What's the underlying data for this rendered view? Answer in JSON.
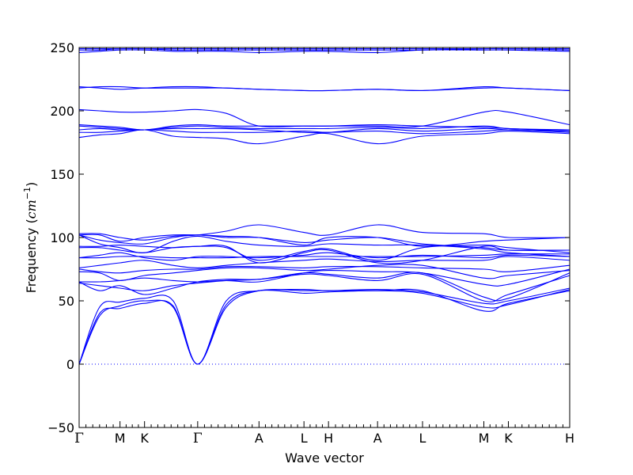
{
  "chart_data": {
    "type": "line",
    "title": "",
    "xlabel": "Wave vector",
    "ylabel_text": "Frequency (",
    "ylabel_unit_base": "cm",
    "ylabel_unit_exp": "−1",
    "ylabel_close": ")",
    "ylim": [
      -50,
      250
    ],
    "yticks": [
      -50,
      0,
      50,
      100,
      150,
      200,
      250
    ],
    "ytick_labels": [
      "−50",
      "0",
      "50",
      "100",
      "150",
      "200",
      "250"
    ],
    "xlim": [
      0,
      12
    ],
    "high_symmetry_points": [
      {
        "label": "Γ",
        "x": 0,
        "serif": true
      },
      {
        "label": "M",
        "x": 1,
        "serif": false
      },
      {
        "label": "K",
        "x": 1.6,
        "serif": false
      },
      {
        "label": "Γ",
        "x": 2.9,
        "serif": true
      },
      {
        "label": "A",
        "x": 4.4,
        "serif": false
      },
      {
        "label": "L",
        "x": 5.5,
        "serif": false
      },
      {
        "label": "H",
        "x": 6.1,
        "serif": false
      },
      {
        "label": "A",
        "x": 7.3,
        "serif": false
      },
      {
        "label": "L",
        "x": 8.4,
        "serif": false
      },
      {
        "label": "M",
        "x": 9.9,
        "serif": false
      },
      {
        "label": "K",
        "x": 10.5,
        "serif": false
      },
      {
        "label": "H",
        "x": 12,
        "serif": false
      }
    ],
    "grid": false,
    "zero_line": "dotted",
    "series_color": "#0000ff",
    "series": [
      {
        "x": [
          0,
          0.5,
          1,
          1.6,
          2.3,
          2.9,
          3.6,
          4.4,
          5.5,
          6.1,
          7.3,
          8.4,
          9.9,
          10.5,
          12
        ],
        "y": [
          0,
          38,
          46,
          50,
          45,
          0,
          45,
          58,
          58,
          58,
          58,
          58,
          42,
          48,
          58
        ]
      },
      {
        "x": [
          0,
          0.5,
          1,
          1.6,
          2.3,
          2.9,
          3.6,
          4.4,
          5.5,
          6.1,
          7.3,
          8.4,
          9.9,
          10.5,
          12
        ],
        "y": [
          0,
          40,
          44,
          48,
          46,
          0,
          47,
          58,
          56,
          57,
          58,
          56,
          45,
          47,
          59
        ]
      },
      {
        "x": [
          0,
          0.5,
          1,
          1.6,
          2.3,
          2.9,
          3.6,
          4.4,
          5.5,
          6.1,
          7.3,
          8.4,
          9.9,
          10.5,
          12
        ],
        "y": [
          0,
          45,
          49,
          52,
          50,
          0,
          50,
          58,
          59,
          58,
          59,
          57,
          48,
          50,
          60
        ]
      },
      {
        "x": [
          0,
          0.5,
          1,
          1.6,
          2.3,
          2.9,
          3.6,
          4.4,
          5.5,
          6.1,
          7.3,
          8.4,
          9.9,
          10.5,
          12
        ],
        "y": [
          65,
          58,
          62,
          55,
          60,
          65,
          67,
          67,
          71,
          70,
          66,
          71,
          50,
          55,
          70
        ]
      },
      {
        "x": [
          0,
          0.5,
          1,
          1.6,
          2.3,
          2.9,
          3.6,
          4.4,
          5.5,
          6.1,
          7.3,
          8.4,
          9.9,
          10.5,
          12
        ],
        "y": [
          64,
          62,
          60,
          58,
          62,
          64,
          66,
          67,
          72,
          71,
          68,
          72,
          53,
          52,
          72
        ]
      },
      {
        "x": [
          0,
          0.5,
          1,
          1.6,
          2.3,
          2.9,
          3.6,
          4.4,
          5.5,
          6.1,
          7.3,
          8.4,
          9.9,
          10.5,
          12
        ],
        "y": [
          65,
          65,
          66,
          68,
          66,
          65,
          66,
          65,
          72,
          74,
          73,
          72,
          63,
          63,
          75
        ]
      },
      {
        "x": [
          0,
          0.5,
          1,
          1.6,
          2.3,
          2.9,
          3.6,
          4.4,
          5.5,
          6.1,
          7.3,
          8.4,
          9.9,
          10.5,
          12
        ],
        "y": [
          73,
          72,
          66,
          70,
          72,
          74,
          76,
          76,
          74,
          75,
          78,
          78,
          68,
          70,
          74
        ]
      },
      {
        "x": [
          0,
          0.5,
          1,
          1.6,
          2.3,
          2.9,
          3.6,
          4.4,
          5.5,
          6.1,
          7.3,
          8.4,
          9.9,
          10.5,
          12
        ],
        "y": [
          75,
          73,
          72,
          74,
          75,
          75,
          77,
          77,
          76,
          77,
          77,
          76,
          75,
          73,
          78
        ]
      },
      {
        "x": [
          0,
          0.5,
          1,
          1.6,
          2.3,
          2.9,
          3.6,
          4.4,
          5.5,
          6.1,
          7.3,
          8.4,
          9.9,
          10.5,
          12
        ],
        "y": [
          76,
          78,
          80,
          82,
          78,
          76,
          78,
          80,
          82,
          83,
          81,
          82,
          82,
          85,
          82
        ]
      },
      {
        "x": [
          0,
          0.5,
          1,
          1.6,
          2.3,
          2.9,
          3.6,
          4.4,
          5.5,
          6.1,
          7.3,
          8.4,
          9.9,
          10.5,
          12
        ],
        "y": [
          84,
          86,
          88,
          84,
          82,
          85,
          85,
          84,
          86,
          88,
          84,
          86,
          84,
          86,
          85
        ]
      },
      {
        "x": [
          0,
          0.5,
          1,
          1.6,
          2.3,
          2.9,
          3.6,
          4.4,
          5.5,
          6.1,
          7.3,
          8.4,
          9.9,
          10.5,
          12
        ],
        "y": [
          84,
          84,
          85,
          85,
          84,
          84,
          84,
          85,
          85,
          85,
          85,
          85,
          86,
          87,
          87
        ]
      },
      {
        "x": [
          0,
          0.5,
          1,
          1.6,
          2.3,
          2.9,
          3.6,
          4.4,
          5.5,
          6.1,
          7.3,
          8.4,
          9.9,
          10.5,
          12
        ],
        "y": [
          92,
          92,
          90,
          88,
          92,
          93,
          93,
          80,
          88,
          90,
          80,
          82,
          93,
          90,
          90
        ]
      },
      {
        "x": [
          0,
          0.5,
          1,
          1.6,
          2.3,
          2.9,
          3.6,
          4.4,
          5.5,
          6.1,
          7.3,
          8.4,
          9.9,
          10.5,
          12
        ],
        "y": [
          93,
          93,
          94,
          93,
          92,
          93,
          92,
          82,
          89,
          91,
          82,
          92,
          94,
          92,
          88
        ]
      },
      {
        "x": [
          0,
          0.5,
          1,
          1.6,
          2.3,
          2.9,
          3.6,
          4.4,
          5.5,
          6.1,
          7.3,
          8.4,
          9.9,
          10.5,
          12
        ],
        "y": [
          102,
          95,
          92,
          88,
          97,
          101,
          97,
          94,
          93,
          95,
          94,
          94,
          91,
          88,
          85
        ]
      },
      {
        "x": [
          0,
          0.5,
          1,
          1.6,
          2.3,
          2.9,
          3.6,
          4.4,
          5.5,
          6.1,
          7.3,
          8.4,
          9.9,
          10.5,
          12
        ],
        "y": [
          102,
          98,
          96,
          95,
          100,
          102,
          100,
          100,
          96,
          98,
          100,
          95,
          92,
          90,
          90
        ]
      },
      {
        "x": [
          0,
          0.5,
          1,
          1.6,
          2.3,
          2.9,
          3.6,
          4.4,
          5.5,
          6.1,
          7.3,
          8.4,
          9.9,
          10.5,
          12
        ],
        "y": [
          102,
          102,
          97,
          100,
          102,
          102,
          101,
          100,
          94,
          100,
          100,
          93,
          97,
          98,
          100
        ]
      },
      {
        "x": [
          0,
          0.5,
          1,
          1.6,
          2.3,
          2.9,
          3.6,
          4.4,
          5.5,
          6.1,
          7.3,
          8.4,
          9.9,
          10.5,
          12
        ],
        "y": [
          103,
          103,
          100,
          98,
          101,
          102,
          105,
          110,
          104,
          102,
          110,
          104,
          103,
          100,
          100
        ]
      },
      {
        "x": [
          0,
          0.5,
          1,
          1.6,
          2.3,
          2.9,
          3.6,
          4.4,
          5.5,
          6.1,
          7.3,
          8.4,
          9.9,
          10.5,
          12
        ],
        "y": [
          179,
          181,
          182,
          185,
          180,
          179,
          178,
          174,
          180,
          182,
          174,
          180,
          182,
          184,
          182
        ]
      },
      {
        "x": [
          0,
          0.5,
          1,
          1.6,
          2.3,
          2.9,
          3.6,
          4.4,
          5.5,
          6.1,
          7.3,
          8.4,
          9.9,
          10.5,
          12
        ],
        "y": [
          183,
          183,
          184,
          185,
          184,
          183,
          183,
          183,
          184,
          183,
          184,
          182,
          184,
          185,
          183
        ]
      },
      {
        "x": [
          0,
          0.5,
          1,
          1.6,
          2.3,
          2.9,
          3.6,
          4.4,
          5.5,
          6.1,
          7.3,
          8.4,
          9.9,
          10.5,
          12
        ],
        "y": [
          185,
          186,
          185,
          185,
          186,
          186,
          186,
          185,
          183,
          183,
          186,
          184,
          186,
          185,
          184
        ]
      },
      {
        "x": [
          0,
          0.5,
          1,
          1.6,
          2.3,
          2.9,
          3.6,
          4.4,
          5.5,
          6.1,
          7.3,
          8.4,
          9.9,
          10.5,
          12
        ],
        "y": [
          188,
          187,
          186,
          185,
          187,
          188,
          187,
          186,
          186,
          186,
          187,
          186,
          188,
          186,
          185
        ]
      },
      {
        "x": [
          0,
          0.5,
          1,
          1.6,
          2.3,
          2.9,
          3.6,
          4.4,
          5.5,
          6.1,
          7.3,
          8.4,
          9.9,
          10.5,
          12
        ],
        "y": [
          189,
          188,
          187,
          185,
          188,
          189,
          188,
          188,
          188,
          188,
          189,
          188,
          187,
          186,
          184
        ]
      },
      {
        "x": [
          0,
          0.5,
          1,
          1.6,
          2.3,
          2.9,
          3.6,
          4.4,
          5.5,
          6.1,
          7.3,
          8.4,
          9.9,
          10.5,
          12
        ],
        "y": [
          201,
          200,
          199,
          199,
          200,
          201,
          198,
          188,
          188,
          188,
          188,
          188,
          199,
          199,
          189
        ]
      },
      {
        "x": [
          0,
          0.5,
          1,
          1.6,
          2.3,
          2.9,
          3.6,
          4.4,
          5.5,
          6.1,
          7.3,
          8.4,
          9.9,
          10.5,
          12
        ],
        "y": [
          218,
          219,
          219,
          218,
          218,
          218,
          218,
          217,
          216,
          216,
          217,
          216,
          219,
          218,
          216
        ]
      },
      {
        "x": [
          0,
          0.5,
          1,
          1.6,
          2.3,
          2.9,
          3.6,
          4.4,
          5.5,
          6.1,
          7.3,
          8.4,
          9.9,
          10.5,
          12
        ],
        "y": [
          219,
          218,
          217,
          218,
          219,
          219,
          218,
          217,
          216,
          216,
          217,
          216,
          218,
          218,
          216
        ]
      },
      {
        "x": [
          0,
          0.5,
          1,
          1.6,
          2.3,
          2.9,
          3.6,
          4.4,
          5.5,
          6.1,
          7.3,
          8.4,
          9.9,
          10.5,
          12
        ],
        "y": [
          246,
          247,
          248,
          248,
          247,
          247,
          247,
          246,
          247,
          247,
          246,
          248,
          248,
          248,
          247
        ]
      },
      {
        "x": [
          0,
          0.5,
          1,
          1.6,
          2.3,
          2.9,
          3.6,
          4.4,
          5.5,
          6.1,
          7.3,
          8.4,
          9.9,
          10.5,
          12
        ],
        "y": [
          248,
          248,
          249,
          249,
          248,
          248,
          248,
          248,
          248,
          248,
          248,
          248,
          249,
          249,
          248
        ]
      },
      {
        "x": [
          0,
          0.5,
          1,
          1.6,
          2.3,
          2.9,
          3.6,
          4.4,
          5.5,
          6.1,
          7.3,
          8.4,
          9.9,
          10.5,
          12
        ],
        "y": [
          249,
          249,
          249,
          249,
          249,
          249,
          249,
          249,
          249,
          249,
          249,
          249,
          249,
          249,
          249
        ]
      }
    ]
  }
}
